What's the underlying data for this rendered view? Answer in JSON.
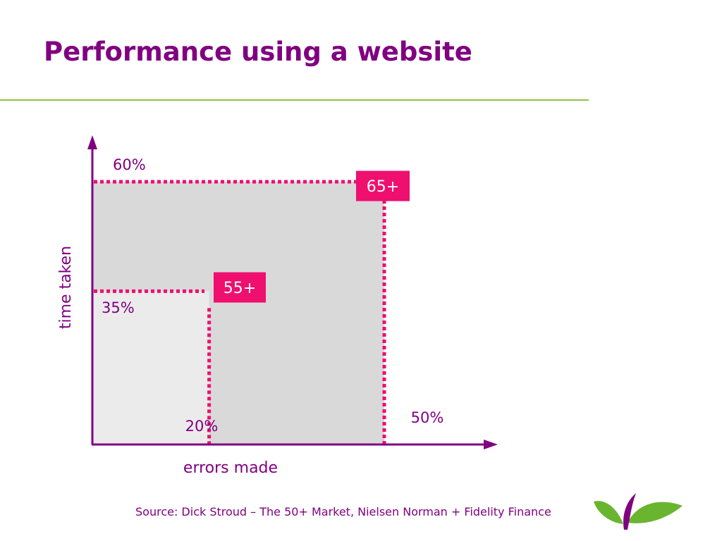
{
  "slide": {
    "title": "Performance using a website",
    "source": "Source: Dick Stroud – The 50+ Market, Nielsen Norman + Fidelity Finance"
  },
  "colors": {
    "title": "#800080",
    "axis": "#800080",
    "rule": "#8cc63f",
    "marker": "#ee0f6f",
    "area_older": "#d9d9d9",
    "area_younger": "#ebebeb",
    "logo_leaf": "#6ab530",
    "logo_sprout": "#800080"
  },
  "icons": {
    "logo": "leaf-sprout-logo-icon"
  },
  "chart_data": {
    "type": "area",
    "xlabel": "errors made",
    "ylabel": "time taken",
    "xlim": [
      0,
      70
    ],
    "ylim": [
      0,
      73
    ],
    "grid": false,
    "legend": "none",
    "series": [
      {
        "name": "65+",
        "x": 50,
        "y": 60,
        "x_label": "50%",
        "y_label": "60%"
      },
      {
        "name": "55+",
        "x": 20,
        "y": 35,
        "x_label": "20%",
        "y_label": "35%"
      }
    ]
  }
}
